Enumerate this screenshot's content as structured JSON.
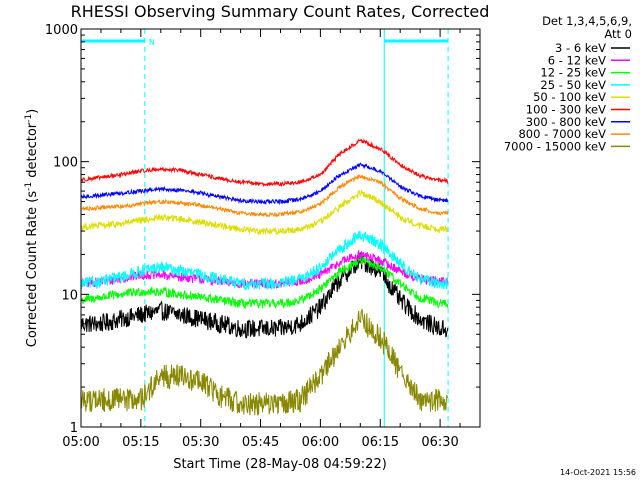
{
  "chart_data": {
    "type": "line",
    "title": "RHESSI Observing Summary Count Rates, Corrected",
    "xlabel": "Start Time (28-May-08 04:59:22)",
    "ylabel_main": "Corrected Count Rate (s",
    "ylabel_exp1": "-1",
    "ylabel_mid": " detector",
    "ylabel_exp2": "-1",
    "ylabel_end": ")",
    "x_unit": "minutes since 05:00",
    "xlim": [
      0,
      100
    ],
    "ylim": [
      1,
      1000
    ],
    "y_scale": "log",
    "x_ticks": [
      {
        "value": 0,
        "label": "05:00"
      },
      {
        "value": 15,
        "label": "05:15"
      },
      {
        "value": 30,
        "label": "05:30"
      },
      {
        "value": 45,
        "label": "05:45"
      },
      {
        "value": 60,
        "label": "06:00"
      },
      {
        "value": 75,
        "label": "06:15"
      },
      {
        "value": 90,
        "label": "06:30"
      }
    ],
    "y_ticks": [
      {
        "value": 1,
        "label": "1"
      },
      {
        "value": 10,
        "label": "10"
      },
      {
        "value": 100,
        "label": "100"
      },
      {
        "value": 1000,
        "label": "1000"
      }
    ],
    "legend_header": [
      "Det 1,3,4,5,6,9,",
      "Att 0"
    ],
    "legend_position": "right",
    "x_samples": [
      0,
      5,
      10,
      15,
      20,
      25,
      30,
      35,
      40,
      45,
      50,
      55,
      60,
      65,
      70,
      75,
      80,
      85,
      90,
      92
    ],
    "series": [
      {
        "name": "3 - 6 keV",
        "color": "#000000",
        "noise": 0.07,
        "values": [
          6,
          6,
          6.5,
          7,
          7.5,
          7,
          6.5,
          6,
          5.5,
          5.5,
          5.5,
          6,
          8,
          13,
          18,
          15,
          9,
          6.5,
          5.5,
          5.5
        ]
      },
      {
        "name": "6 - 12 keV",
        "color": "#ff00ff",
        "noise": 0.035,
        "values": [
          12,
          12.5,
          13,
          14,
          14,
          13.5,
          13,
          12.5,
          12,
          12,
          12,
          12.5,
          14,
          17.5,
          20,
          18,
          15,
          13,
          12.5,
          12.5
        ]
      },
      {
        "name": "12 - 25 keV",
        "color": "#00ff00",
        "noise": 0.035,
        "values": [
          9,
          9.5,
          10,
          10.5,
          10.5,
          10,
          9.5,
          9,
          8.5,
          8.5,
          8.5,
          9,
          11,
          15,
          18,
          16,
          12,
          9.5,
          8.5,
          8.5
        ]
      },
      {
        "name": "25 - 50 keV",
        "color": "#00ffff",
        "noise": 0.045,
        "values": [
          12,
          12.5,
          13.5,
          15,
          16,
          15,
          14,
          13,
          12,
          12,
          12,
          13,
          16,
          22,
          28,
          24,
          17,
          13,
          12,
          12
        ]
      },
      {
        "name": "50 - 100 keV",
        "color": "#dddd00",
        "noise": 0.025,
        "values": [
          32,
          33,
          34,
          36,
          38,
          37,
          35,
          33,
          31,
          30,
          30,
          31,
          35,
          46,
          58,
          50,
          38,
          33,
          31,
          31
        ]
      },
      {
        "name": "100 - 300 keV",
        "color": "#ff0000",
        "noise": 0.015,
        "values": [
          73,
          76,
          80,
          85,
          88,
          86,
          80,
          74,
          70,
          68,
          68,
          70,
          80,
          115,
          145,
          125,
          95,
          78,
          72,
          72
        ]
      },
      {
        "name": "300 - 800 keV",
        "color": "#0000ff",
        "noise": 0.015,
        "values": [
          54,
          56,
          58,
          60,
          62,
          61,
          58,
          54,
          51,
          50,
          50,
          52,
          60,
          80,
          95,
          85,
          65,
          55,
          51,
          51
        ]
      },
      {
        "name": "800 - 7000 keV",
        "color": "#ff8800",
        "noise": 0.015,
        "values": [
          44,
          45,
          46,
          48,
          50,
          49,
          47,
          44,
          41,
          40,
          40,
          42,
          48,
          65,
          78,
          70,
          53,
          44,
          41,
          41
        ]
      },
      {
        "name": "7000 - 15000 keV",
        "color": "#888800",
        "noise": 0.09,
        "values": [
          1.6,
          1.6,
          1.6,
          1.6,
          2.4,
          2.4,
          2.2,
          1.7,
          1.5,
          1.5,
          1.5,
          1.6,
          2.4,
          4.2,
          6.5,
          4.8,
          2.6,
          1.6,
          1.6,
          1.6
        ]
      }
    ],
    "annotations": {
      "flag_label": "N",
      "flag_segments": [
        [
          0,
          16
        ],
        [
          76,
          92
        ]
      ],
      "vertical_markers": [
        0,
        16,
        76,
        92
      ],
      "marker_color": "#00ffff"
    },
    "timestamp": "14-Oct-2021 15:56"
  }
}
